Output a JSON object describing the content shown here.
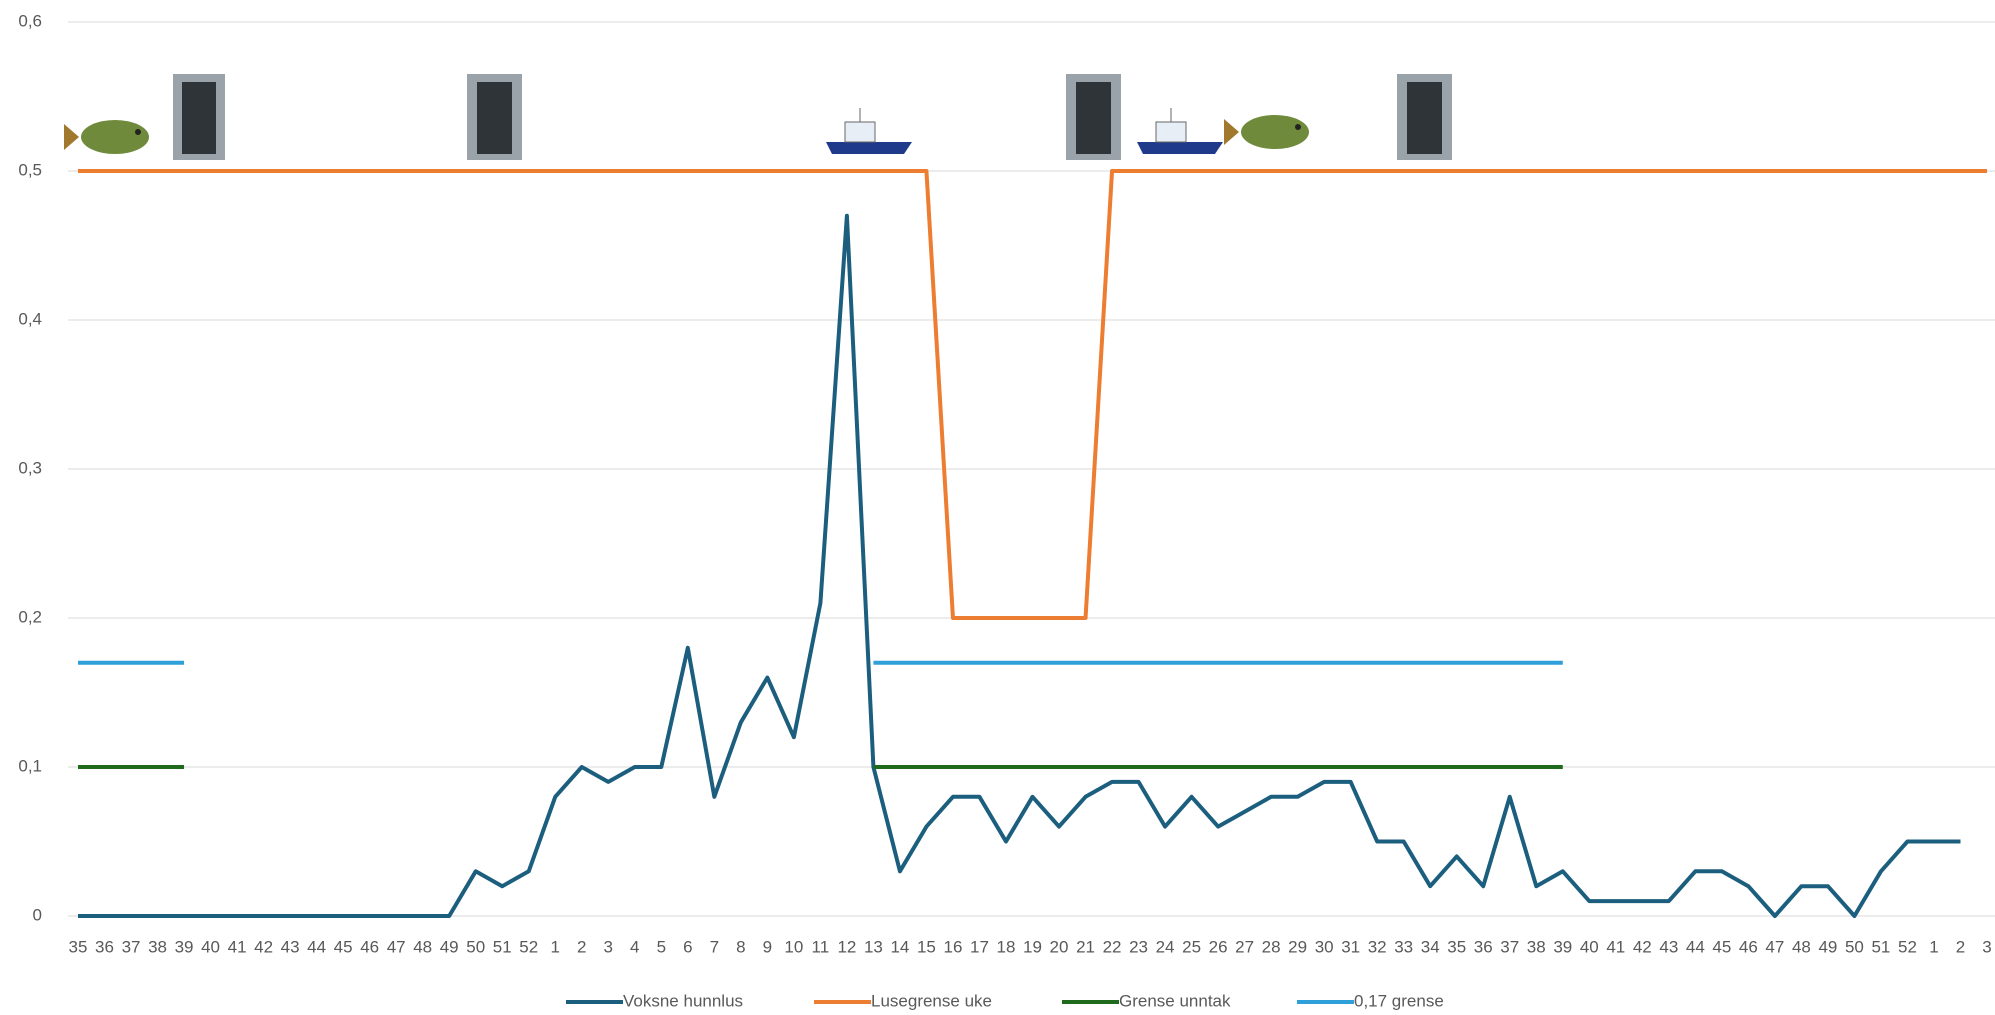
{
  "chart_data": {
    "type": "line",
    "categories": [
      "35",
      "36",
      "37",
      "38",
      "39",
      "40",
      "41",
      "42",
      "43",
      "44",
      "45",
      "46",
      "47",
      "48",
      "49",
      "50",
      "51",
      "52",
      "1",
      "2",
      "3",
      "4",
      "5",
      "6",
      "7",
      "8",
      "9",
      "10",
      "11",
      "12",
      "13",
      "14",
      "15",
      "16",
      "17",
      "18",
      "19",
      "20",
      "21",
      "22",
      "23",
      "24",
      "25",
      "26",
      "27",
      "28",
      "29",
      "30",
      "31",
      "32",
      "33",
      "34",
      "35",
      "36",
      "37",
      "38",
      "39",
      "40",
      "41",
      "42",
      "43",
      "44",
      "45",
      "46",
      "47",
      "48",
      "49",
      "50",
      "51",
      "52",
      "1",
      "2",
      "3"
    ],
    "series": [
      {
        "name": "Voksne hunnlus",
        "color": "#1b5e7e",
        "values": [
          0,
          0,
          0,
          0,
          0,
          0,
          0,
          0,
          0,
          0,
          0,
          0,
          0,
          0,
          0,
          0.03,
          0.02,
          0.03,
          0.08,
          0.1,
          0.09,
          0.1,
          0.1,
          0.18,
          0.08,
          0.13,
          0.16,
          0.12,
          0.21,
          0.47,
          0.1,
          0.03,
          0.06,
          0.08,
          0.08,
          0.05,
          0.08,
          0.06,
          0.08,
          0.09,
          0.09,
          0.06,
          0.08,
          0.06,
          0.07,
          0.08,
          0.08,
          0.09,
          0.09,
          0.05,
          0.05,
          0.02,
          0.04,
          0.02,
          0.08,
          0.02,
          0.03,
          0.01,
          0.01,
          0.01,
          0.01,
          0.03,
          0.03,
          0.02,
          0,
          0.02,
          0.02,
          0,
          0.03,
          0.05,
          0.05,
          0.05,
          null
        ]
      },
      {
        "name": "Lusegrense uke",
        "color": "#ed7d31",
        "values": [
          0.5,
          0.5,
          0.5,
          0.5,
          0.5,
          0.5,
          0.5,
          0.5,
          0.5,
          0.5,
          0.5,
          0.5,
          0.5,
          0.5,
          0.5,
          0.5,
          0.5,
          0.5,
          0.5,
          0.5,
          0.5,
          0.5,
          0.5,
          0.5,
          0.5,
          0.5,
          0.5,
          0.5,
          0.5,
          0.5,
          0.5,
          0.5,
          0.5,
          0.2,
          0.2,
          0.2,
          0.2,
          0.2,
          0.2,
          0.5,
          0.5,
          0.5,
          0.5,
          0.5,
          0.5,
          0.5,
          0.5,
          0.5,
          0.5,
          0.5,
          0.5,
          0.5,
          0.5,
          0.5,
          0.5,
          0.5,
          0.5,
          0.5,
          0.5,
          0.5,
          0.5,
          0.5,
          0.5,
          0.5,
          0.5,
          0.5,
          0.5,
          0.5,
          0.5,
          0.5,
          0.5,
          0.5,
          0.5
        ]
      },
      {
        "name": "Grense unntak",
        "color": "#1e6b1e",
        "values": [
          0.1,
          0.1,
          0.1,
          0.1,
          0.1,
          null,
          null,
          null,
          null,
          null,
          null,
          null,
          null,
          null,
          null,
          null,
          null,
          null,
          null,
          null,
          null,
          null,
          null,
          null,
          null,
          null,
          null,
          null,
          null,
          null,
          0.1,
          0.1,
          0.1,
          0.1,
          0.1,
          0.1,
          0.1,
          0.1,
          0.1,
          0.1,
          0.1,
          0.1,
          0.1,
          0.1,
          0.1,
          0.1,
          0.1,
          0.1,
          0.1,
          0.1,
          0.1,
          0.1,
          0.1,
          0.1,
          0.1,
          0.1,
          0.1,
          null,
          null,
          null,
          null,
          null,
          null,
          null,
          null,
          null,
          null,
          null,
          null,
          null,
          null,
          null,
          null
        ]
      },
      {
        "name": "0,17 grense",
        "color": "#2e9fd8",
        "values": [
          0.17,
          0.17,
          0.17,
          0.17,
          0.17,
          null,
          null,
          null,
          null,
          null,
          null,
          null,
          null,
          null,
          null,
          null,
          null,
          null,
          null,
          null,
          null,
          null,
          null,
          null,
          null,
          null,
          null,
          null,
          null,
          null,
          0.17,
          0.17,
          0.17,
          0.17,
          0.17,
          0.17,
          0.17,
          0.17,
          0.17,
          0.17,
          0.17,
          0.17,
          0.17,
          0.17,
          0.17,
          0.17,
          0.17,
          0.17,
          0.17,
          0.17,
          0.17,
          0.17,
          0.17,
          0.17,
          0.17,
          0.17,
          0.17,
          null,
          null,
          null,
          null,
          null,
          null,
          null,
          null,
          null,
          null,
          null,
          null,
          null,
          null,
          null,
          null
        ]
      }
    ],
    "ylim": [
      0,
      0.6
    ],
    "yticks": [
      0,
      {
        "value": 0.1,
        "label": "0,1"
      },
      {
        "value": 0.2,
        "label": "0,2"
      },
      {
        "value": 0.3,
        "label": "0,3"
      },
      {
        "value": 0.4,
        "label": "0,4"
      },
      {
        "value": 0.5,
        "label": "0,5"
      },
      {
        "value": 0.6,
        "label": "0,6"
      }
    ],
    "grid": true,
    "legend": "bottom"
  }
}
